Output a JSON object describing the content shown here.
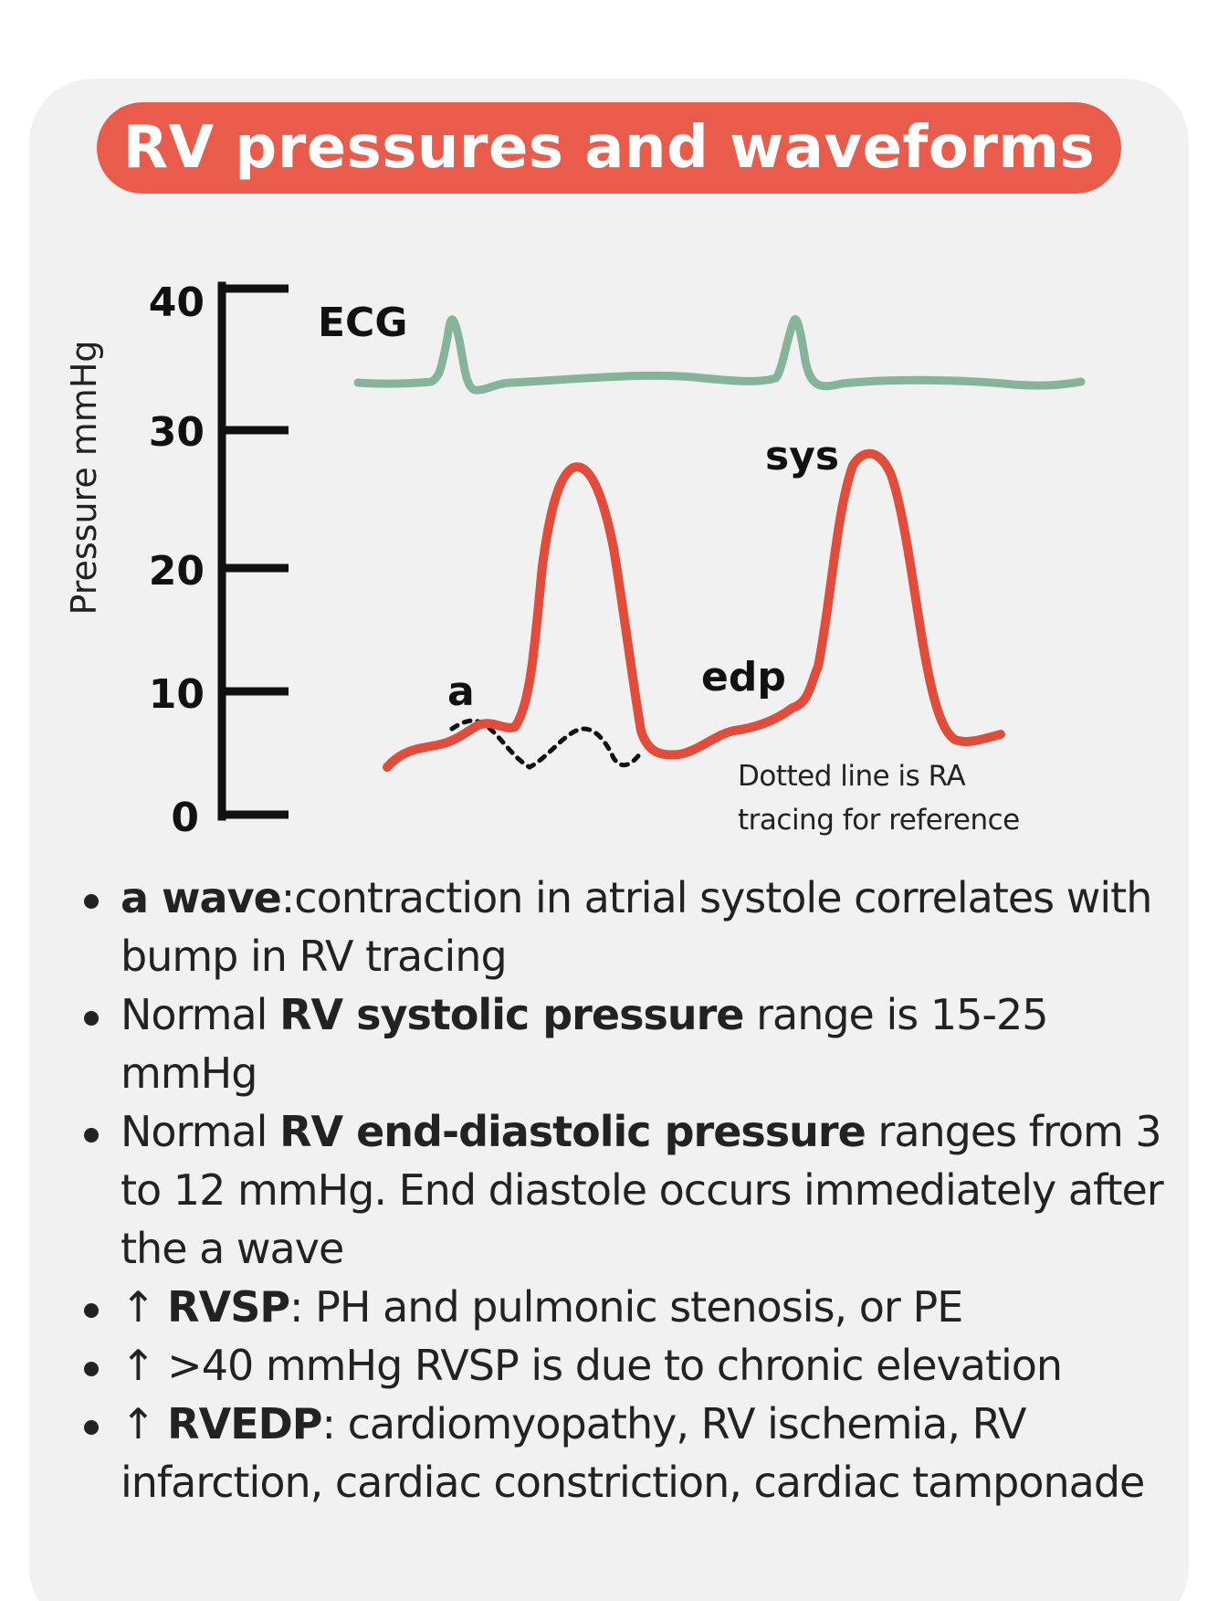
{
  "title": "RV pressures and waveforms",
  "colors": {
    "title_bg": "#e95b4a",
    "card_bg": "#f1f1f1",
    "rv_line": "#e24c3b",
    "ecg_line": "#86b49a",
    "ra_dotted": "#111111"
  },
  "diagram": {
    "y_axis_label": "Pressure mmHg",
    "y_ticks": [
      "0",
      "10",
      "20",
      "30",
      "40"
    ],
    "labels": {
      "ecg": "ECG",
      "a": "a",
      "edp": "edp",
      "sys": "sys"
    },
    "note_line1": "Dotted line is RA",
    "note_line2": "tracing for reference"
  },
  "bullets": [
    {
      "icon": "bullet-dot",
      "b1": "a wave",
      "t1": ":contraction in atrial systole correlates with bump in RV tracing"
    },
    {
      "icon": "bullet-dot",
      "t0": "Normal ",
      "b1": "RV systolic pressure",
      "t1": " range is 15-25 mmHg"
    },
    {
      "icon": "bullet-dot",
      "t0": "Normal ",
      "b1": "RV end-diastolic pressure",
      "t1": " ranges from 3 to 12 mmHg. End diastole occurs immediately after the a wave"
    },
    {
      "icon": "up-arrow-icon",
      "t0": "↑ ",
      "b1": "RVSP",
      "t1": ": PH and pulmonic stenosis, or PE"
    },
    {
      "icon": "up-arrow-icon",
      "t0": "↑ >40 mmHg RVSP is due to chronic elevation"
    },
    {
      "icon": "up-arrow-icon",
      "t0": "↑ ",
      "b1": "RVEDP",
      "t1": ": cardiomyopathy, RV ischemia, RV infarction, cardiac constriction, cardiac tamponade"
    }
  ]
}
